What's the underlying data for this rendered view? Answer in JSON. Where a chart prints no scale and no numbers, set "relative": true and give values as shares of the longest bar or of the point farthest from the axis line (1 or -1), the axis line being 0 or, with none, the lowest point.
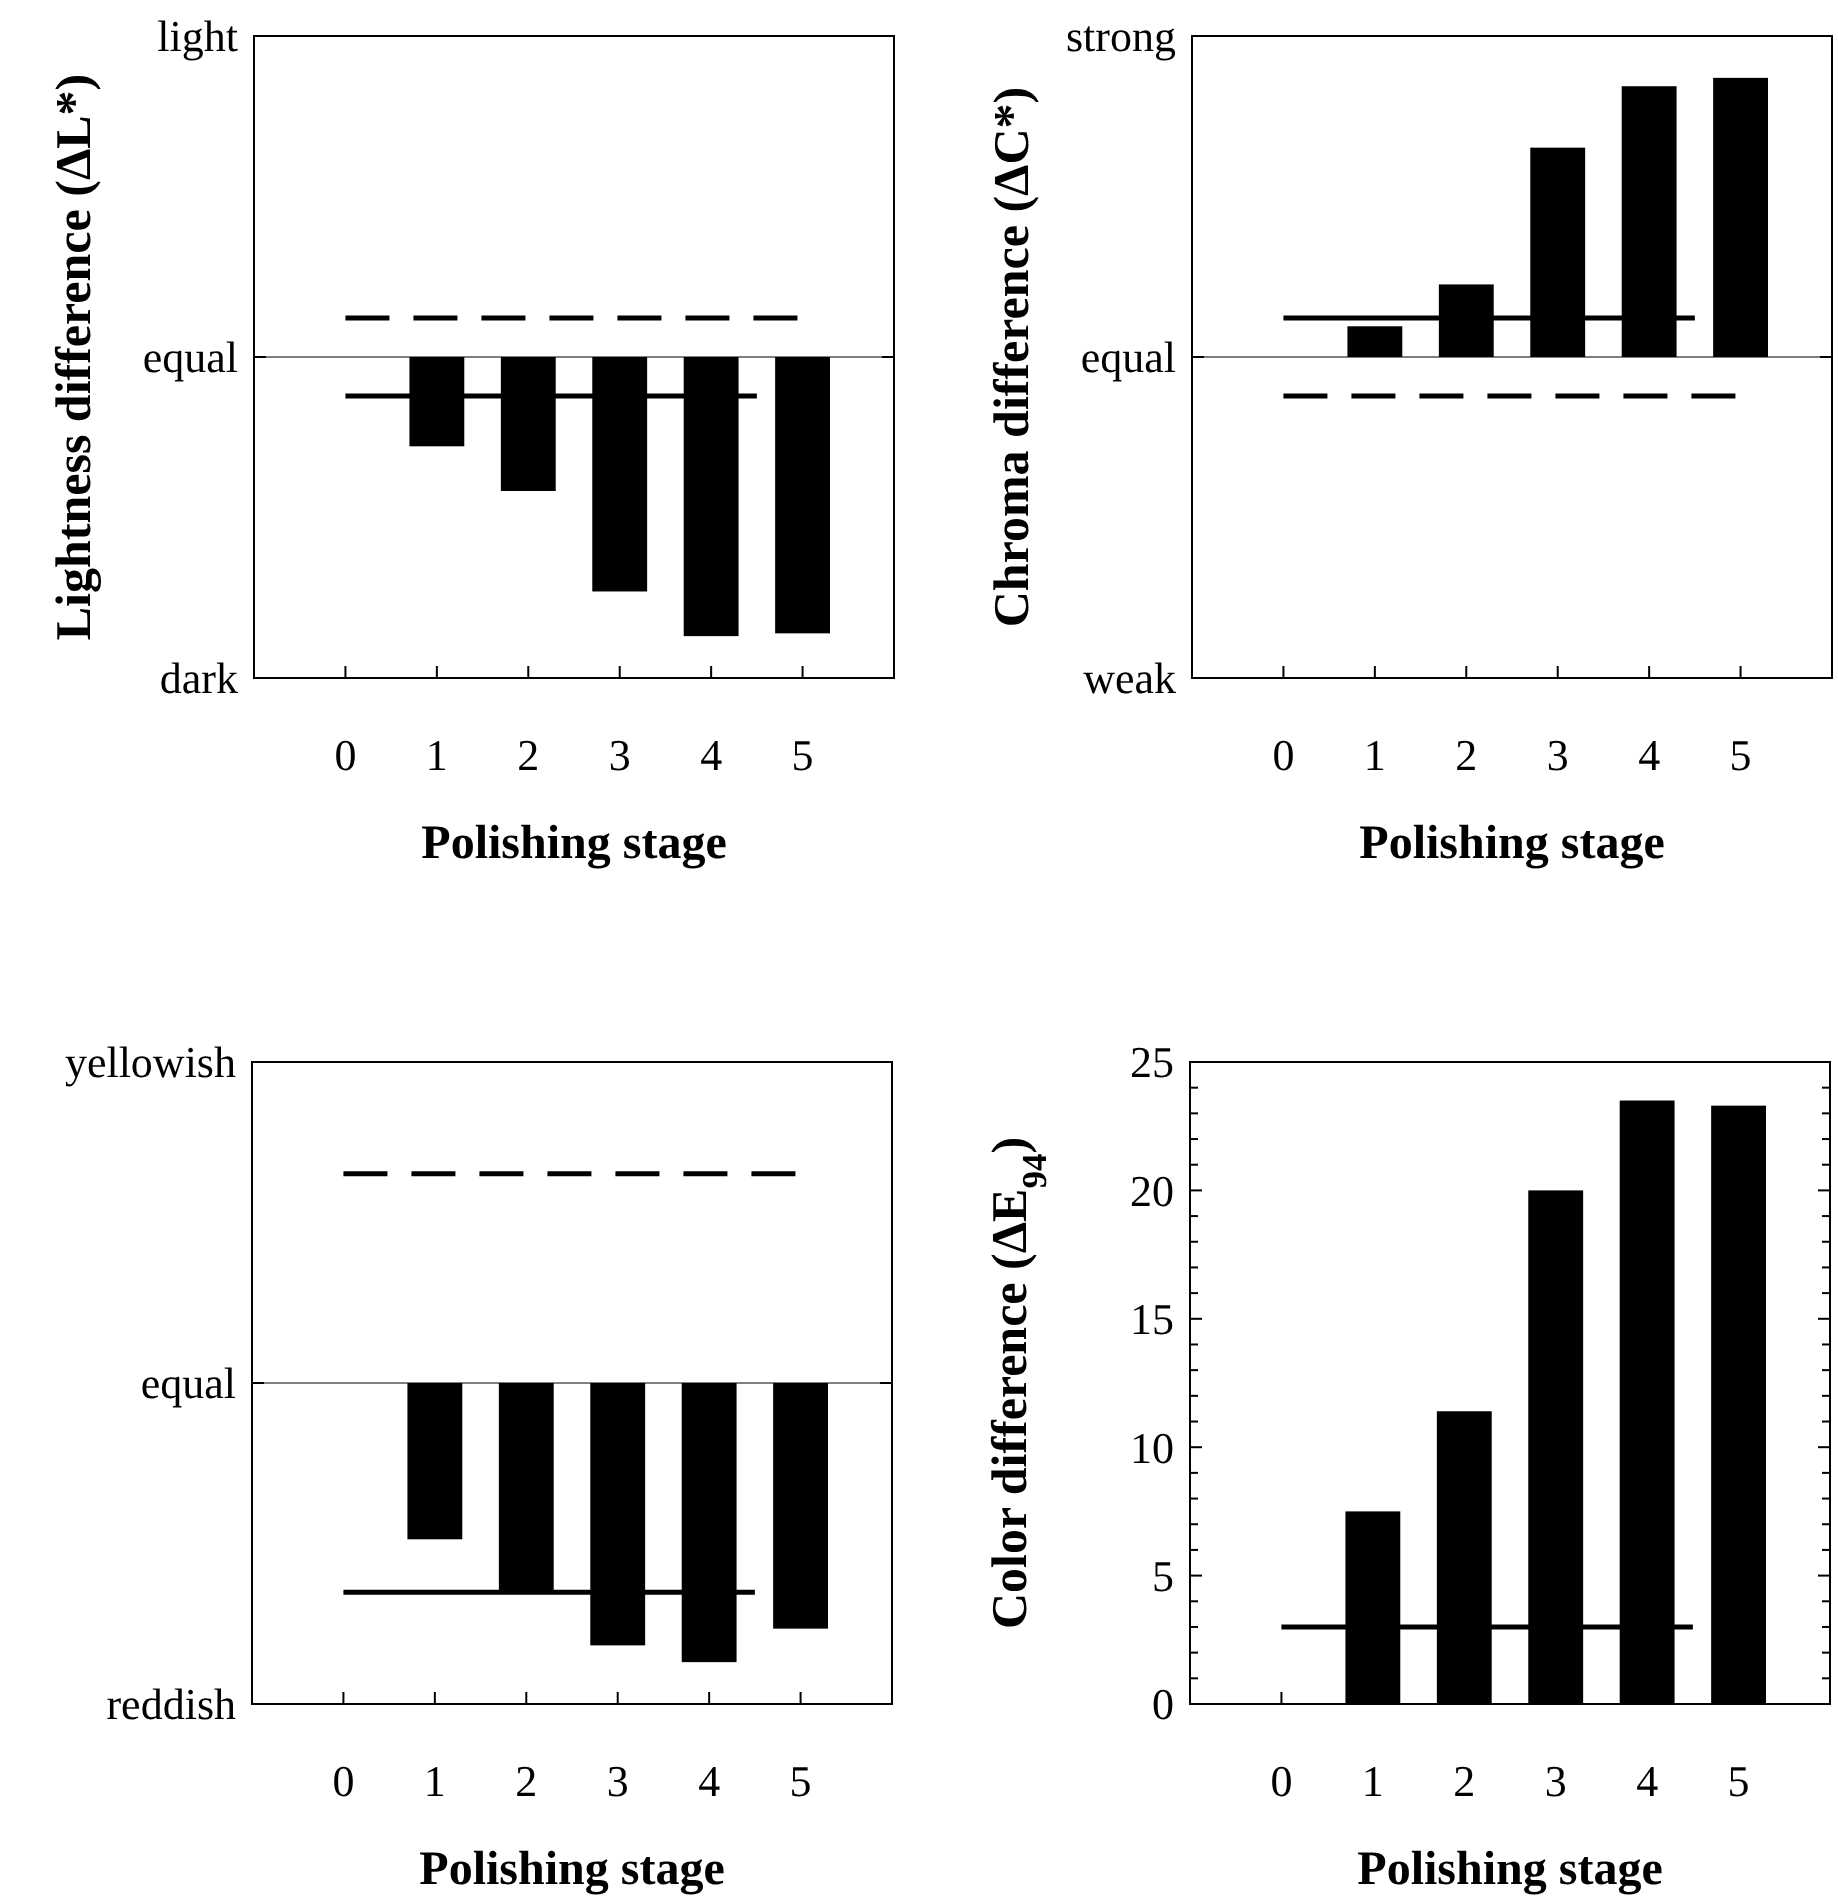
{
  "chart_data": [
    {
      "type": "bar",
      "xlabel": "Polishing stage",
      "ylabel": "Lightness difference (ΔL*)",
      "categories": [
        "0",
        "1",
        "2",
        "3",
        "4",
        "5"
      ],
      "values": [
        null,
        -0.32,
        -0.48,
        -0.84,
        -1,
        -0.99
      ],
      "color": "#000000",
      "relative": true,
      "annotations": [
        "light",
        "equal",
        "dark"
      ],
      "ref_lines": [
        {
          "axis": "y",
          "value": 0.14,
          "line_style": "dashed",
          "color": "#000000"
        },
        {
          "axis": "y",
          "value": -0.14,
          "line_style": "solid",
          "color": "#000000"
        }
      ]
    },
    {
      "type": "bar",
      "xlabel": "Polishing stage",
      "ylabel": "Chroma difference (ΔC*)",
      "categories": [
        "0",
        "1",
        "2",
        "3",
        "4",
        "5"
      ],
      "values": [
        null,
        0.11,
        0.26,
        0.75,
        0.97,
        1
      ],
      "color": "#000000",
      "relative": true,
      "annotations": [
        "strong",
        "equal",
        "weak"
      ],
      "ref_lines": [
        {
          "axis": "y",
          "value": 0.14,
          "line_style": "solid",
          "color": "#000000"
        },
        {
          "axis": "y",
          "value": -0.14,
          "line_style": "dashed",
          "color": "#000000"
        }
      ]
    },
    {
      "type": "bar",
      "xlabel": "Polishing stage",
      "categories": [
        "0",
        "1",
        "2",
        "3",
        "4",
        "5"
      ],
      "values": [
        null,
        -0.56,
        -0.75,
        -0.94,
        -1,
        -0.88
      ],
      "color": "#000000",
      "relative": true,
      "annotations": [
        "yellowish",
        "equal",
        "reddish"
      ],
      "ref_lines": [
        {
          "axis": "y",
          "value": 0.75,
          "line_style": "dashed",
          "color": "#000000"
        },
        {
          "axis": "y",
          "value": -0.75,
          "line_style": "solid",
          "color": "#000000"
        }
      ]
    },
    {
      "type": "bar",
      "xlabel": "Polishing stage",
      "ylabel": "Color difference (ΔE$_{94}$)",
      "categories": [
        "0",
        "1",
        "2",
        "3",
        "4",
        "5"
      ],
      "values": [
        null,
        7.5,
        11.4,
        20.0,
        23.5,
        23.3
      ],
      "color": "#000000",
      "ylim": [
        0,
        25
      ],
      "yticks": [
        0,
        {
          "value": 1,
          "label": null
        },
        {
          "value": 2,
          "label": null
        },
        {
          "value": 3,
          "label": null
        },
        {
          "value": 4,
          "label": null
        },
        5,
        {
          "value": 6,
          "label": null
        },
        {
          "value": 7,
          "label": null
        },
        {
          "value": 8,
          "label": null
        },
        {
          "value": 9,
          "label": null
        },
        10,
        {
          "value": 11,
          "label": null
        },
        {
          "value": 12,
          "label": null
        },
        {
          "value": 13,
          "label": null
        },
        {
          "value": 14,
          "label": null
        },
        15,
        {
          "value": 16,
          "label": null
        },
        {
          "value": 17,
          "label": null
        },
        {
          "value": 18,
          "label": null
        },
        {
          "value": 19,
          "label": null
        },
        20,
        {
          "value": 21,
          "label": null
        },
        {
          "value": 22,
          "label": null
        },
        {
          "value": 23,
          "label": null
        },
        {
          "value": 24,
          "label": null
        },
        25
      ],
      "ref_lines": [
        {
          "axis": "y",
          "value": 3,
          "line_style": "solid",
          "color": "#000000"
        }
      ]
    }
  ]
}
